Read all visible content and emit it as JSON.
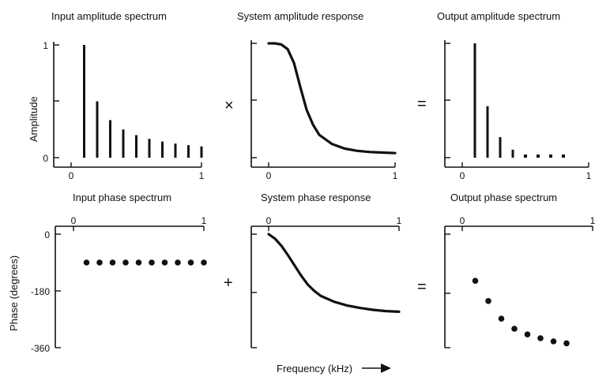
{
  "chart_data": [
    {
      "id": "in-amp",
      "type": "bar",
      "title": "Input amplitude spectrum",
      "ylabel": "Amplitude",
      "xlim": [
        0,
        1
      ],
      "ylim": [
        0,
        1
      ],
      "xticks": [
        "0",
        "1"
      ],
      "yticks": [
        "0",
        "1"
      ],
      "x": [
        0.1,
        0.2,
        0.3,
        0.4,
        0.5,
        0.6,
        0.7,
        0.8,
        0.9,
        1.0
      ],
      "values": [
        1.0,
        0.5,
        0.333,
        0.25,
        0.2,
        0.167,
        0.143,
        0.125,
        0.111,
        0.1
      ]
    },
    {
      "id": "sys-amp",
      "type": "line",
      "title": "System amplitude response",
      "xlim": [
        0,
        1
      ],
      "ylim": [
        0,
        1
      ],
      "xticks": [
        "0",
        "1"
      ],
      "x": [
        0.0,
        0.05,
        0.1,
        0.15,
        0.2,
        0.25,
        0.3,
        0.35,
        0.4,
        0.5,
        0.6,
        0.7,
        0.8,
        0.9,
        1.0
      ],
      "values": [
        1.0,
        1.0,
        0.99,
        0.95,
        0.83,
        0.62,
        0.42,
        0.29,
        0.2,
        0.12,
        0.08,
        0.06,
        0.05,
        0.045,
        0.04
      ]
    },
    {
      "id": "out-amp",
      "type": "bar",
      "title": "Output amplitude spectrum",
      "xlim": [
        0,
        1
      ],
      "ylim": [
        0,
        1
      ],
      "xticks": [
        "0",
        "1"
      ],
      "x": [
        0.1,
        0.2,
        0.3,
        0.4,
        0.5,
        0.6,
        0.7,
        0.8
      ],
      "values": [
        1.0,
        0.45,
        0.18,
        0.07,
        0.04,
        0.03,
        0.02,
        0.02
      ]
    },
    {
      "id": "in-phase",
      "type": "scatter",
      "title": "Input phase spectrum",
      "ylabel": "Phase (degrees)",
      "xlim": [
        0,
        1
      ],
      "ylim": [
        -360,
        0
      ],
      "xticks": [
        "0",
        "1"
      ],
      "yticks": [
        "0",
        "-180",
        "-360"
      ],
      "x": [
        0.1,
        0.2,
        0.3,
        0.4,
        0.5,
        0.6,
        0.7,
        0.8,
        0.9,
        1.0
      ],
      "values": [
        -90,
        -90,
        -90,
        -90,
        -90,
        -90,
        -90,
        -90,
        -90,
        -90
      ]
    },
    {
      "id": "sys-phase",
      "type": "line",
      "title": "System phase response",
      "xlim": [
        0,
        1
      ],
      "ylim": [
        -360,
        0
      ],
      "xticks": [
        "0",
        "1"
      ],
      "x": [
        0.0,
        0.05,
        0.1,
        0.15,
        0.2,
        0.25,
        0.3,
        0.35,
        0.4,
        0.5,
        0.6,
        0.7,
        0.8,
        0.9,
        1.0
      ],
      "values": [
        0,
        -15,
        -38,
        -68,
        -100,
        -132,
        -160,
        -180,
        -196,
        -214,
        -226,
        -234,
        -240,
        -244,
        -246
      ]
    },
    {
      "id": "out-phase",
      "type": "scatter",
      "title": "Output phase spectrum",
      "xlim": [
        0,
        1
      ],
      "ylim": [
        -360,
        0
      ],
      "xticks": [
        "0",
        "1"
      ],
      "x": [
        0.1,
        0.2,
        0.3,
        0.4,
        0.5,
        0.6,
        0.7,
        0.8
      ],
      "values": [
        -148,
        -212,
        -268,
        -300,
        -318,
        -330,
        -340,
        -346
      ]
    }
  ],
  "operators": {
    "times": "×",
    "plus": "+",
    "eq1": "=",
    "eq2": "="
  },
  "xlabel": "Frequency (kHz)"
}
